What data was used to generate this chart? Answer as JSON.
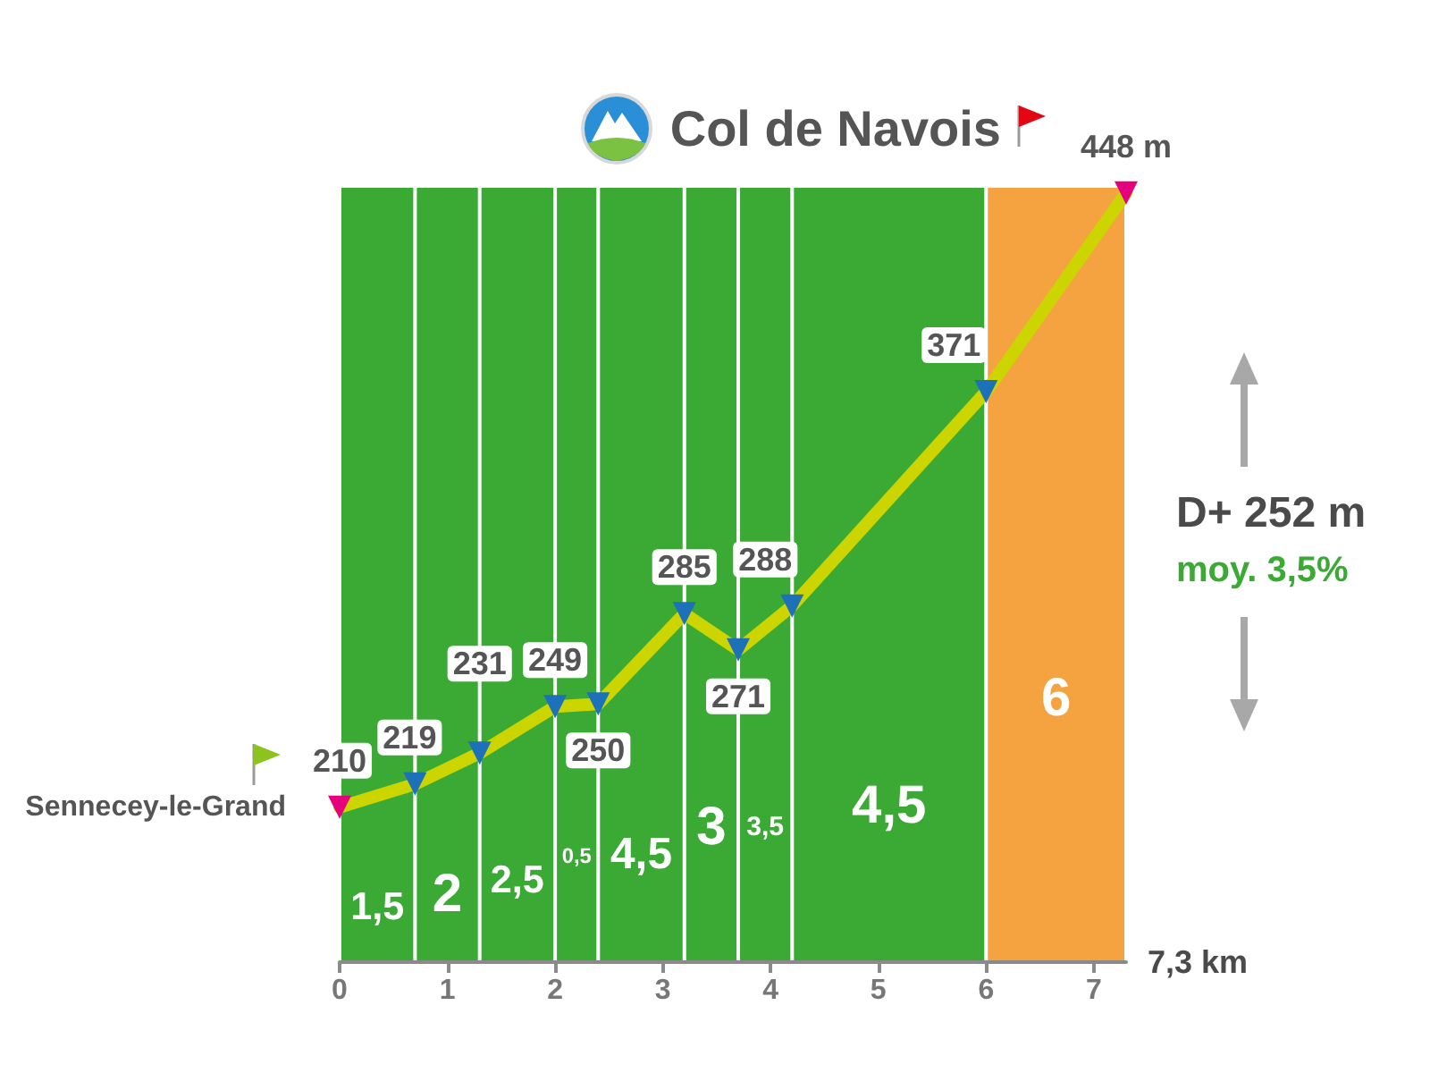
{
  "chart_data": {
    "type": "line",
    "title": "Col de Navois",
    "x": [
      0,
      0.7,
      1.3,
      2.0,
      2.4,
      3.2,
      3.7,
      4.2,
      6.0,
      7.3
    ],
    "series": [
      {
        "color": "#cdd500",
        "colors": [
          "#e5007e",
          "#1d71b8",
          "#1d71b8",
          "#1d71b8",
          "#1d71b8",
          "#1d71b8",
          "#1d71b8",
          "#1d71b8",
          "#1d71b8",
          "#e5007e"
        ],
        "values": [
          210,
          219,
          231,
          249,
          250,
          285,
          271,
          288,
          371,
          448
        ],
        "value_labels": [
          "210",
          "219",
          "231",
          "249",
          "250",
          "285",
          "271",
          "288",
          "371",
          "448 m"
        ]
      }
    ],
    "xlim": [
      0,
      7.3
    ],
    "xticks": [
      0,
      1,
      2,
      3,
      4,
      5,
      6,
      7
    ],
    "xlabel": "7,3 km",
    "tick_labels": "x",
    "grid": false,
    "marker": "triangle",
    "line_style": "solid",
    "bands": [
      {
        "axis": "x",
        "from": 0,
        "to": 0.7,
        "label": "1,5",
        "color": "#3aaa35"
      },
      {
        "axis": "x",
        "from": 0.7,
        "to": 1.3,
        "label": "2",
        "color": "#3aaa35"
      },
      {
        "axis": "x",
        "from": 1.3,
        "to": 2.0,
        "label": "2,5",
        "color": "#3aaa35"
      },
      {
        "axis": "x",
        "from": 2.0,
        "to": 2.4,
        "label": "0,5",
        "color": "#3aaa35"
      },
      {
        "axis": "x",
        "from": 2.4,
        "to": 3.2,
        "label": "4,5",
        "color": "#3aaa35"
      },
      {
        "axis": "x",
        "from": 3.2,
        "to": 3.7,
        "label": "3",
        "color": "#3aaa35"
      },
      {
        "axis": "x",
        "from": 3.7,
        "to": 4.2,
        "label": "3,5",
        "color": "#3aaa35"
      },
      {
        "axis": "x",
        "from": 4.2,
        "to": 6.0,
        "label": "4,5",
        "color": "#3aaa35"
      },
      {
        "axis": "x",
        "from": 6.0,
        "to": 7.3,
        "label": "6",
        "color": "#f4a340"
      }
    ],
    "annotations": [
      {
        "text": "Sennecey-le-Grand",
        "x": 0,
        "y": 210
      },
      "D+ 252 m",
      "moy. 3,5%"
    ]
  }
}
